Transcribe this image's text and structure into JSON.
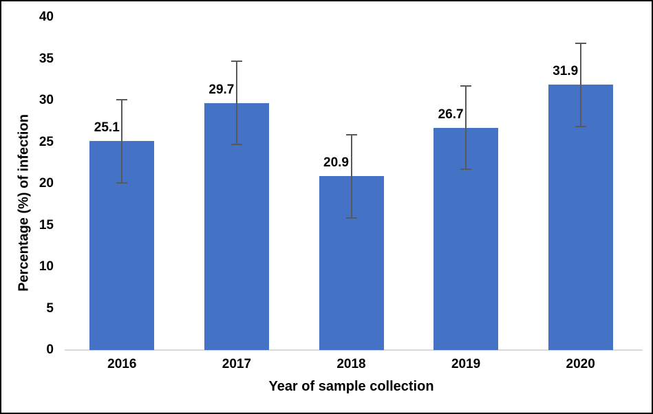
{
  "chart_data": {
    "type": "bar",
    "title": "",
    "categories": [
      "2016",
      "2017",
      "2018",
      "2019",
      "2020"
    ],
    "values": [
      25.1,
      29.7,
      20.9,
      26.7,
      31.9
    ],
    "value_labels": [
      "25.1",
      "29.7",
      "20.9",
      "26.7",
      "31.9"
    ],
    "error_bars": [
      5.0,
      5.0,
      5.0,
      5.0,
      5.0
    ],
    "xlabel": "Year of sample collection",
    "ylabel": "Percentage (%) of infection",
    "ylim": [
      0,
      40
    ],
    "yticks": [
      0,
      5,
      10,
      15,
      20,
      25,
      30,
      35,
      40
    ],
    "grid": false,
    "legend": false,
    "colors": {
      "bar": "#4472C4",
      "error_bar": "#595959",
      "axis_line": "#D9D9D9",
      "text": "#000000",
      "frame_border": "#000000",
      "background": "#FFFFFF"
    }
  }
}
